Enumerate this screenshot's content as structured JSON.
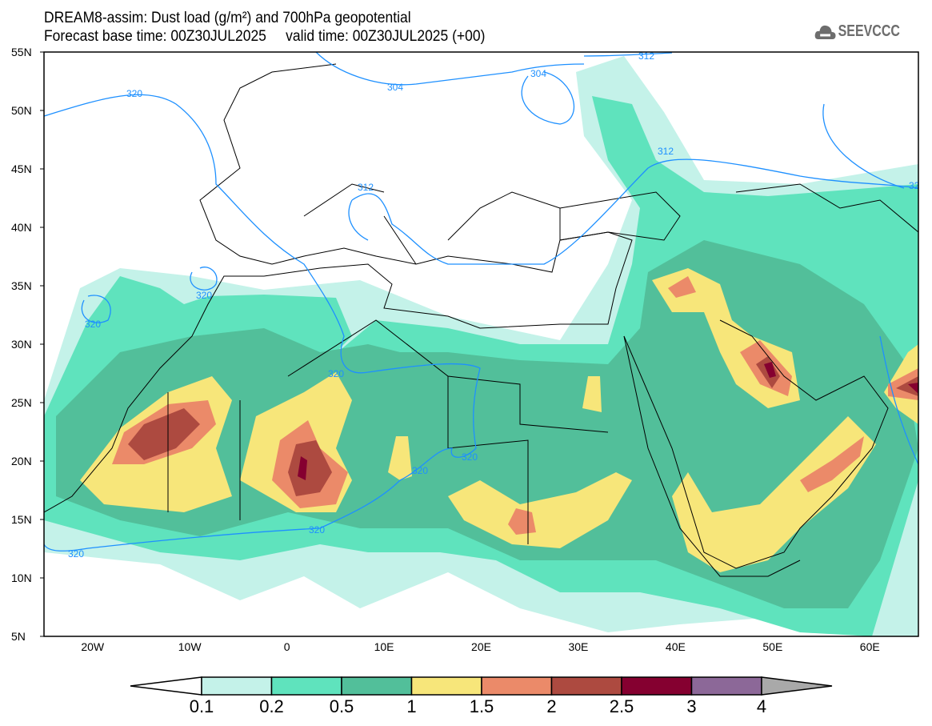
{
  "header": {
    "title": "DREAM8-assim: Dust load (g/m²) and 700hPa geopotential",
    "subtitle": "Forecast base time: 00Z30JUL2025     valid time: 00Z30JUL2025 (+00)",
    "logo": "SEEVCCC"
  },
  "axes": {
    "lat_labels": [
      "55N",
      "50N",
      "45N",
      "40N",
      "35N",
      "30N",
      "25N",
      "20N",
      "15N",
      "10N",
      "5N"
    ],
    "lon_labels": [
      "20W",
      "10W",
      "0",
      "10E",
      "20E",
      "30E",
      "40E",
      "50E",
      "60E"
    ],
    "lon_range": [
      -25,
      65
    ],
    "lat_range": [
      5,
      55
    ]
  },
  "contour_labels": [
    "320",
    "304",
    "304",
    "312",
    "312",
    "312",
    "320",
    "320",
    "320",
    "320",
    "320",
    "320",
    "320",
    "32"
  ],
  "colorbar": {
    "labels": [
      "0.1",
      "0.2",
      "0.5",
      "1",
      "1.5",
      "2",
      "2.5",
      "3",
      "4"
    ],
    "colors": [
      "#c4f2e9",
      "#5fe3bd",
      "#52bf9a",
      "#f7e67a",
      "#eb8a69",
      "#ad4a40",
      "#850030",
      "#8c6898"
    ],
    "under_color": "#ffffff",
    "over_color": "#a9a9a9"
  }
}
